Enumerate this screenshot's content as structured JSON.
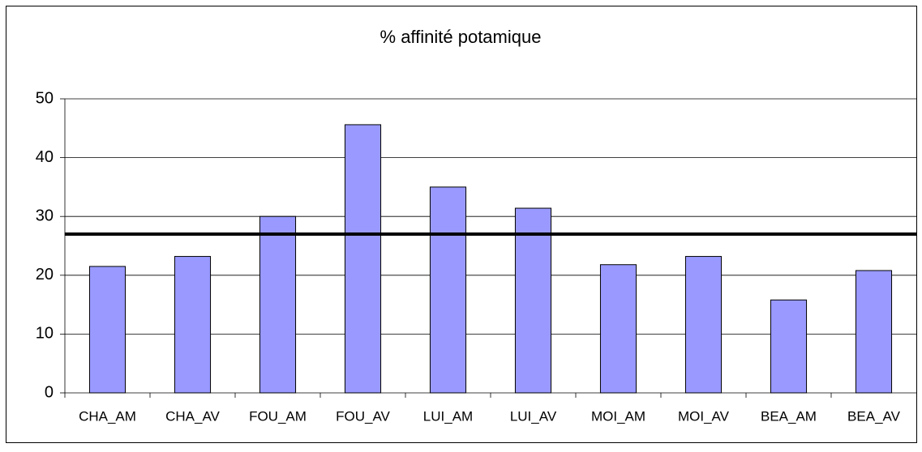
{
  "chart_data": {
    "type": "bar",
    "title": "% affinité potamique",
    "categories": [
      "CHA_AM",
      "CHA_AV",
      "FOU_AM",
      "FOU_AV",
      "LUI_AM",
      "LUI_AV",
      "MOI_AM",
      "MOI_AV",
      "BEA_AM",
      "BEA_AV"
    ],
    "values": [
      21.5,
      23.2,
      30,
      45.6,
      35,
      31.4,
      21.8,
      23.2,
      15.8,
      20.8
    ],
    "color": "#9999ff",
    "reference_line": 27,
    "ylim": [
      0,
      50
    ],
    "yticks": [
      0,
      10,
      20,
      30,
      40,
      50
    ],
    "grid": true
  }
}
